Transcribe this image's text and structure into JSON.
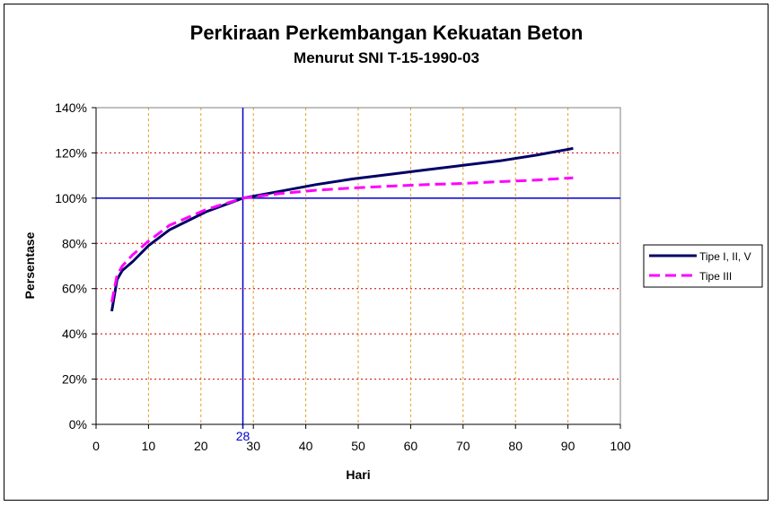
{
  "chart_data": {
    "type": "line",
    "title": "Perkiraan Perkembangan Kekuatan Beton",
    "subtitle": "Menurut SNI T-15-1990-03",
    "xlabel": "Hari",
    "ylabel": "Persentase",
    "xlim": [
      0,
      100
    ],
    "ylim": [
      0,
      140
    ],
    "x_ticks": [
      "0",
      "10",
      "20",
      "30",
      "40",
      "50",
      "60",
      "70",
      "80",
      "90",
      "100"
    ],
    "y_ticks": [
      "0%",
      "20%",
      "40%",
      "60%",
      "80%",
      "100%",
      "120%",
      "140%"
    ],
    "grid": true,
    "legend_position": "right",
    "reference_lines": {
      "x": 28,
      "x_label": "28",
      "y": 100
    },
    "series": [
      {
        "name": "Tipe I, II, V",
        "color": "#000066",
        "style": "solid",
        "x": [
          3,
          4,
          5,
          7,
          10,
          14,
          21,
          28,
          35,
          42,
          49,
          56,
          63,
          70,
          77,
          84,
          91
        ],
        "y": [
          50,
          64,
          68,
          72,
          79,
          86,
          94,
          100,
          103,
          106,
          108.5,
          110.5,
          112.5,
          114.5,
          116.5,
          119,
          122
        ]
      },
      {
        "name": "Tipe III",
        "color": "#ff00ff",
        "style": "dashed",
        "x": [
          3,
          4,
          5,
          7,
          10,
          14,
          21,
          28,
          35,
          42,
          49,
          56,
          63,
          70,
          77,
          84,
          91
        ],
        "y": [
          54,
          66,
          70,
          75,
          81,
          88,
          95,
          100,
          102,
          103.5,
          104.5,
          105.3,
          106,
          106.5,
          107.3,
          108,
          109
        ]
      }
    ]
  }
}
